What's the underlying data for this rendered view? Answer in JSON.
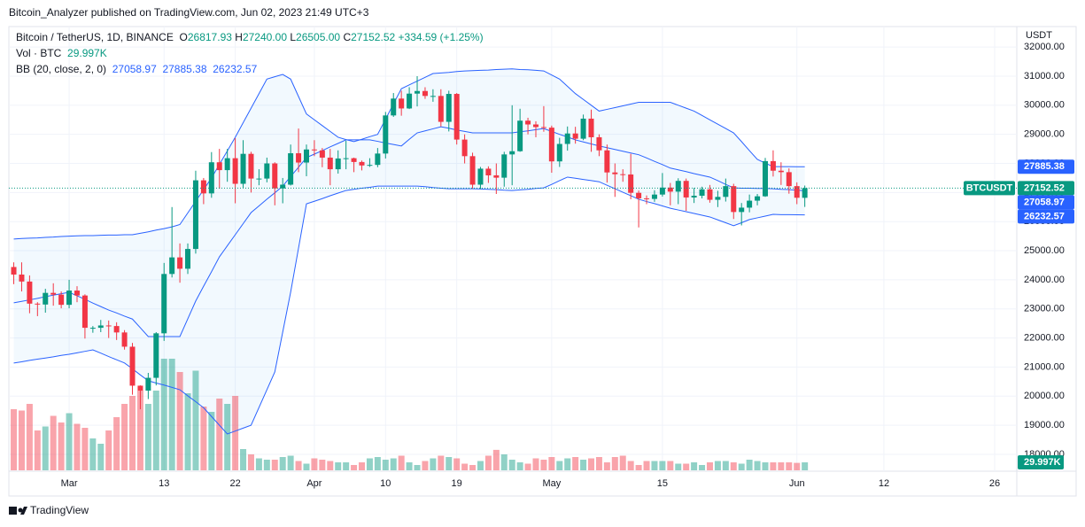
{
  "chart_data": {
    "type": "candlestick",
    "publisher": "Bitcoin_Analyzer published on TradingView.com, Jun 02, 2023 21:49 UTC+3",
    "title": "Bitcoin / TetherUS, 1D, BINANCE",
    "ohlc": [
      {
        "key": "O",
        "label": "26817.93"
      },
      {
        "key": "H",
        "label": "27240.00"
      },
      {
        "key": "L",
        "label": "26505.00"
      },
      {
        "key": "C",
        "label": "27152.52"
      }
    ],
    "change": "+334.59 (+1.25%)",
    "currency": "USDT",
    "brand": "TradingView",
    "up_color": "#089981",
    "down_color": "#f23645",
    "grid": true,
    "xlim": [
      -0.62,
      126.8
    ],
    "xticks": [
      {
        "value": 7,
        "label": "Mar"
      },
      {
        "value": 19,
        "label": "13"
      },
      {
        "value": 28,
        "label": "22"
      },
      {
        "value": 38,
        "label": "Apr"
      },
      {
        "value": 47,
        "label": "10"
      },
      {
        "value": 56,
        "label": "19"
      },
      {
        "value": 68,
        "label": "May"
      },
      {
        "value": 82,
        "label": "15"
      },
      {
        "value": 99,
        "label": "Jun"
      },
      {
        "value": 110,
        "label": "12"
      },
      {
        "value": 124,
        "label": "26"
      }
    ],
    "ylim": [
      17420,
      32705
    ],
    "yticks": [
      {
        "value": 18000,
        "label": "18000.00"
      },
      {
        "value": 19000,
        "label": "19000.00"
      },
      {
        "value": 20000,
        "label": "20000.00"
      },
      {
        "value": 21000,
        "label": "21000.00"
      },
      {
        "value": 22000,
        "label": "22000.00"
      },
      {
        "value": 23000,
        "label": "23000.00"
      },
      {
        "value": 24000,
        "label": "24000.00"
      },
      {
        "value": 25000,
        "label": "25000.00"
      },
      {
        "value": 26000,
        "label": "26000.00"
      },
      {
        "value": 27000,
        "label": "27000.00"
      },
      {
        "value": 28000,
        "label": "28000.00"
      },
      {
        "value": 29000,
        "label": "29000.00"
      },
      {
        "value": 30000,
        "label": "30000.00"
      },
      {
        "value": 31000,
        "label": "31000.00"
      },
      {
        "value": 32000,
        "label": "32000.00"
      }
    ],
    "open": [
      24440,
      24180,
      23940,
      23180,
      23150,
      23550,
      23490,
      23140,
      23630,
      23460,
      22350,
      22350,
      22430,
      22410,
      22190,
      21700,
      20360,
      20190,
      20630,
      22160,
      24200,
      24770,
      24380,
      25060,
      27420,
      26970,
      28040,
      27770,
      28180,
      27300,
      28330,
      27480,
      27480,
      28000,
      27140,
      27270,
      28350,
      28030,
      28480,
      28450,
      28200,
      27800,
      28170,
      28180,
      28050,
      27930,
      27950,
      28340,
      29650,
      30230,
      29890,
      30400,
      30490,
      30320,
      30320,
      29430,
      30390,
      28820,
      28250,
      27270,
      27820,
      27590,
      27510,
      28310,
      28420,
      29470,
      29340,
      29250,
      29230,
      28070,
      28670,
      29030,
      28850,
      29540,
      28900,
      28450,
      27690,
      27630,
      27620,
      26990,
      26800,
      26780,
      26930,
      27170,
      27030,
      27400,
      26830,
      26890,
      27110,
      26750,
      26850,
      27220,
      26330,
      26480,
      26720,
      26870,
      28080,
      27750,
      27700,
      27220,
      26817.93
    ],
    "high": [
      24600,
      24600,
      24150,
      23230,
      23690,
      23880,
      23600,
      24000,
      23780,
      23500,
      22410,
      22620,
      22600,
      22540,
      22270,
      21830,
      20370,
      20800,
      22200,
      24580,
      26500,
      25250,
      25250,
      27750,
      27500,
      28390,
      28500,
      28500,
      28870,
      28800,
      28400,
      27800,
      28200,
      28040,
      27500,
      28650,
      29200,
      28650,
      28800,
      28530,
      28500,
      28450,
      28780,
      28200,
      28100,
      28180,
      28530,
      29770,
      30420,
      30500,
      30620,
      31000,
      30620,
      30550,
      30550,
      30500,
      30420,
      29000,
      28370,
      27880,
      27900,
      28000,
      28400,
      30000,
      29880,
      29570,
      29450,
      29970,
      29300,
      28880,
      29270,
      29260,
      29680,
      29850,
      29000,
      28650,
      28000,
      27800,
      28330,
      27070,
      26900,
      27080,
      27670,
      27330,
      27490,
      27480,
      27160,
      27200,
      27260,
      27060,
      27480,
      27300,
      26640,
      26930,
      26950,
      28190,
      28450,
      28040,
      27830,
      27350,
      27240
    ],
    "low": [
      23850,
      23600,
      22850,
      22750,
      22870,
      23110,
      23020,
      23020,
      23230,
      21980,
      22180,
      22200,
      22000,
      21930,
      21600,
      20050,
      19550,
      19900,
      20370,
      21900,
      24080,
      23900,
      24200,
      24900,
      26600,
      26820,
      27130,
      27370,
      26630,
      27150,
      27000,
      27250,
      27350,
      26560,
      26630,
      27240,
      27700,
      27560,
      28250,
      27870,
      27250,
      27650,
      27800,
      27700,
      27760,
      27880,
      27870,
      28170,
      29600,
      29640,
      29870,
      29960,
      30220,
      30120,
      29270,
      29100,
      28650,
      28000,
      27140,
      27120,
      27330,
      26950,
      27200,
      27250,
      28400,
      29000,
      28900,
      29090,
      27680,
      27880,
      28440,
      28680,
      28800,
      28400,
      28250,
      27340,
      26850,
      27370,
      26770,
      25800,
      26600,
      26680,
      26860,
      26560,
      26600,
      26370,
      26640,
      26800,
      26650,
      26500,
      26690,
      26090,
      25870,
      26320,
      26560,
      26850,
      27550,
      27260,
      26960,
      26600,
      26505
    ],
    "close": [
      24180,
      23940,
      23180,
      23150,
      23550,
      23490,
      23140,
      23630,
      23460,
      22350,
      22350,
      22430,
      22410,
      22190,
      21700,
      20360,
      20190,
      20630,
      22160,
      24200,
      24770,
      24380,
      25060,
      27420,
      26970,
      28040,
      27770,
      28180,
      27300,
      28330,
      27480,
      27480,
      28000,
      27140,
      27270,
      28350,
      28030,
      28480,
      28450,
      28200,
      27800,
      28170,
      28180,
      28050,
      27930,
      27950,
      28340,
      29650,
      30230,
      29890,
      30400,
      30490,
      30320,
      30320,
      29430,
      30390,
      28820,
      28250,
      27270,
      27820,
      27590,
      27510,
      28310,
      28420,
      29470,
      29340,
      29250,
      29230,
      28070,
      28670,
      29030,
      28850,
      29540,
      28900,
      28450,
      27690,
      27630,
      27620,
      26990,
      26800,
      26780,
      26930,
      27170,
      27030,
      27400,
      26830,
      26890,
      27110,
      26750,
      26850,
      27220,
      26330,
      26480,
      26720,
      26870,
      28080,
      27750,
      27700,
      27220,
      26820,
      27152.52
    ],
    "last_price": {
      "name": "BTCUSDT",
      "value": 27152.52,
      "label": "27152.52"
    },
    "volume": {
      "name": "Vol · BTC",
      "ylim": [
        0,
        500000
      ],
      "value_label": "29.997K",
      "values": [
        230000,
        225000,
        250000,
        150000,
        165000,
        205000,
        180000,
        215000,
        175000,
        160000,
        120000,
        100000,
        150000,
        200000,
        250000,
        280000,
        300000,
        250000,
        300000,
        420000,
        420000,
        370000,
        290000,
        375000,
        240000,
        220000,
        270000,
        250000,
        280000,
        80000,
        60000,
        45000,
        40000,
        40000,
        50000,
        55000,
        35000,
        25000,
        45000,
        40000,
        35000,
        30000,
        30000,
        20000,
        30000,
        45000,
        50000,
        40000,
        45000,
        55000,
        30000,
        20000,
        35000,
        45000,
        55000,
        50000,
        45000,
        25000,
        20000,
        35000,
        55000,
        77000,
        60000,
        40000,
        30000,
        25000,
        45000,
        40000,
        50000,
        35000,
        45000,
        50000,
        40000,
        45000,
        50000,
        30000,
        50000,
        55000,
        35000,
        20000,
        35000,
        35000,
        35000,
        35000,
        25000,
        25000,
        30000,
        20000,
        30000,
        35000,
        35000,
        30000,
        25000,
        40000,
        35000,
        30000,
        30000,
        30000,
        29997,
        28000,
        30000
      ]
    },
    "bands_name": "BB (20, close, 2, 0)",
    "bands": [
      {
        "color": "#2962ff",
        "value_label": "27058.97",
        "values": [
          23210,
          23260,
          23310,
          23360,
          23420,
          23470,
          23520,
          23570,
          23450,
          23330,
          23200,
          23080,
          22960,
          22860,
          22750,
          22650,
          22350,
          22050,
          22050,
          22050,
          22050,
          22050,
          22660,
          23270,
          23780,
          24280,
          24790,
          25170,
          25550,
          25930,
          26310,
          26540,
          26770,
          26990,
          27220,
          27550,
          27870,
          28200,
          28320,
          28440,
          28570,
          28690,
          28810,
          28810,
          28810,
          28810,
          28760,
          28700,
          28650,
          28600,
          28830,
          29050,
          29120,
          29190,
          29260,
          29210,
          29150,
          29100,
          29050,
          29050,
          29050,
          29050,
          29050,
          29050,
          29090,
          29120,
          29160,
          29200,
          29100,
          29000,
          28910,
          28810,
          28740,
          28670,
          28600,
          28540,
          28480,
          28420,
          28360,
          28300,
          28190,
          28070,
          27960,
          27840,
          27780,
          27720,
          27650,
          27590,
          27530,
          27410,
          27280,
          27160,
          27150,
          27150,
          27140,
          27140,
          27130,
          27110,
          27100,
          27080,
          27058.97
        ]
      },
      {
        "color": "#2962ff",
        "value_label": "27885.38",
        "values": [
          25400,
          25420,
          25430,
          25440,
          25460,
          25470,
          25490,
          25500,
          25510,
          25520,
          25520,
          25530,
          25540,
          25540,
          25550,
          25550,
          25600,
          25650,
          25710,
          25760,
          25820,
          25900,
          26300,
          26700,
          27100,
          27500,
          27970,
          28430,
          28900,
          29400,
          29900,
          30400,
          30900,
          30980,
          31060,
          30900,
          30300,
          29700,
          29500,
          29300,
          29100,
          28900,
          28820,
          28750,
          28830,
          28920,
          29000,
          29520,
          30050,
          30570,
          30700,
          30830,
          30960,
          31090,
          31110,
          31130,
          31160,
          31180,
          31190,
          31200,
          31210,
          31230,
          31240,
          31250,
          31230,
          31220,
          31200,
          31180,
          31040,
          30900,
          30650,
          30400,
          30200,
          30000,
          29800,
          29860,
          29920,
          29980,
          30040,
          30100,
          30100,
          30100,
          30100,
          30100,
          30000,
          29900,
          29800,
          29650,
          29500,
          29350,
          29200,
          29050,
          28750,
          28440,
          28140,
          28010,
          27890,
          27890,
          27890,
          27885,
          27885.38
        ]
      },
      {
        "color": "#2962ff",
        "value_label": "26232.57",
        "values": [
          21140,
          21180,
          21230,
          21270,
          21310,
          21350,
          21400,
          21440,
          21490,
          21540,
          21590,
          21480,
          21360,
          21250,
          21140,
          20940,
          20730,
          20530,
          20450,
          20380,
          20300,
          20220,
          20010,
          19810,
          19600,
          19300,
          19000,
          18700,
          18800,
          18900,
          19000,
          19610,
          20220,
          20830,
          22200,
          23570,
          25090,
          26610,
          26700,
          26790,
          26890,
          26980,
          27070,
          27110,
          27150,
          27180,
          27220,
          27220,
          27220,
          27220,
          27220,
          27220,
          27200,
          27170,
          27150,
          27130,
          27130,
          27130,
          27130,
          27120,
          27110,
          27100,
          27080,
          27070,
          27090,
          27110,
          27140,
          27160,
          27280,
          27410,
          27530,
          27490,
          27450,
          27410,
          27370,
          27250,
          27130,
          27010,
          26890,
          26770,
          26690,
          26620,
          26540,
          26460,
          26400,
          26340,
          26280,
          26220,
          26160,
          26060,
          25960,
          25860,
          25960,
          26070,
          26130,
          26190,
          26250,
          26240,
          26240,
          26235,
          26232.57
        ]
      }
    ]
  }
}
